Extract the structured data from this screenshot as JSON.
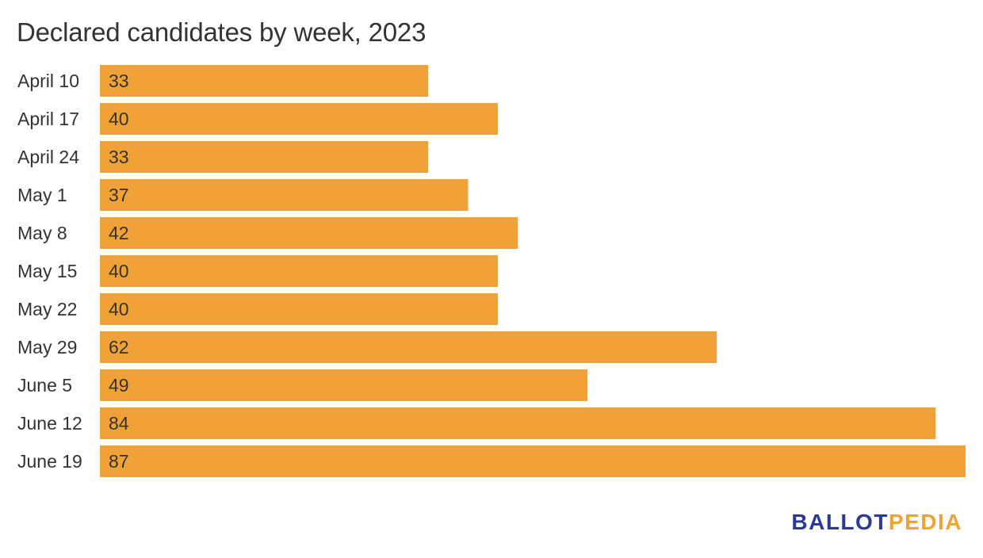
{
  "chart_data": {
    "type": "bar",
    "orientation": "horizontal",
    "title": "Declared candidates by week, 2023",
    "categories": [
      "April 10",
      "April 17",
      "April 24",
      "May 1",
      "May 8",
      "May 15",
      "May 22",
      "May 29",
      "June 5",
      "June 12",
      "June 19"
    ],
    "values": [
      33,
      40,
      33,
      37,
      42,
      40,
      40,
      62,
      49,
      84,
      87
    ],
    "xlim": [
      0,
      87
    ],
    "grid": false,
    "legend": "none",
    "bar_color": "#f0a236"
  },
  "branding": {
    "logo_part_a": "BALLOT",
    "logo_part_b": "PEDIA",
    "logo_color_a": "#2b3a93",
    "logo_color_b": "#f0a236"
  }
}
